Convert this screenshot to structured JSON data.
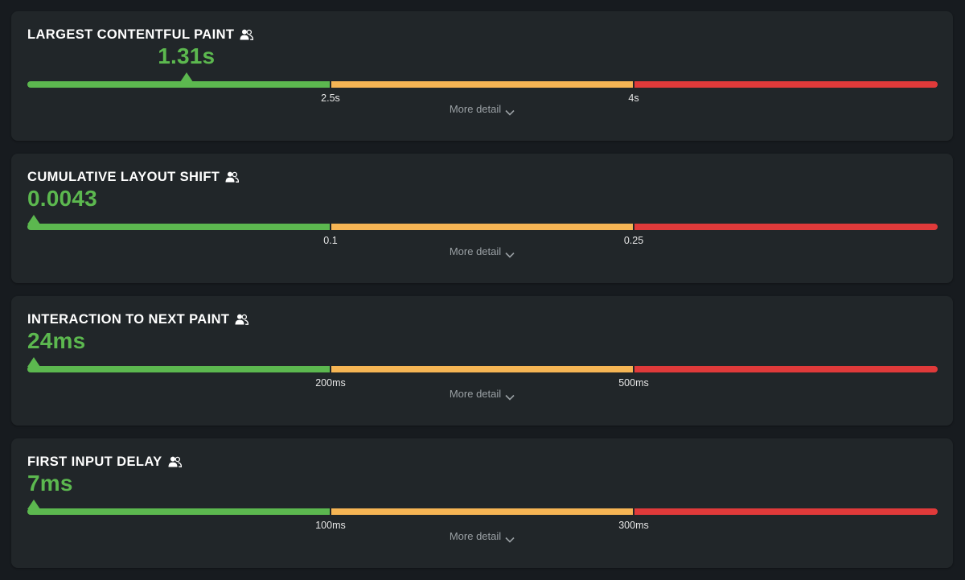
{
  "metrics": [
    {
      "title": "LARGEST CONTENTFUL PAINT",
      "value": "1.31s",
      "value_fraction": 0.1747,
      "thresholds": [
        "2.5s",
        "4s"
      ],
      "more_label": "More detail",
      "icon": "users-icon"
    },
    {
      "title": "CUMULATIVE LAYOUT SHIFT",
      "value": "0.0043",
      "value_fraction": 0.0,
      "thresholds": [
        "0.1",
        "0.25"
      ],
      "more_label": "More detail",
      "icon": "users-icon"
    },
    {
      "title": "INTERACTION TO NEXT PAINT",
      "value": "24ms",
      "value_fraction": 0.0,
      "thresholds": [
        "200ms",
        "500ms"
      ],
      "more_label": "More detail",
      "icon": "users-icon"
    },
    {
      "title": "FIRST INPUT DELAY",
      "value": "7ms",
      "value_fraction": 0.0,
      "thresholds": [
        "100ms",
        "300ms"
      ],
      "more_label": "More detail",
      "icon": "users-icon"
    }
  ],
  "colors": {
    "good": "#5cb84f",
    "needs_improvement": "#f6b554",
    "poor": "#e03a3a",
    "card_bg": "#212629",
    "page_bg": "#171b1f"
  }
}
